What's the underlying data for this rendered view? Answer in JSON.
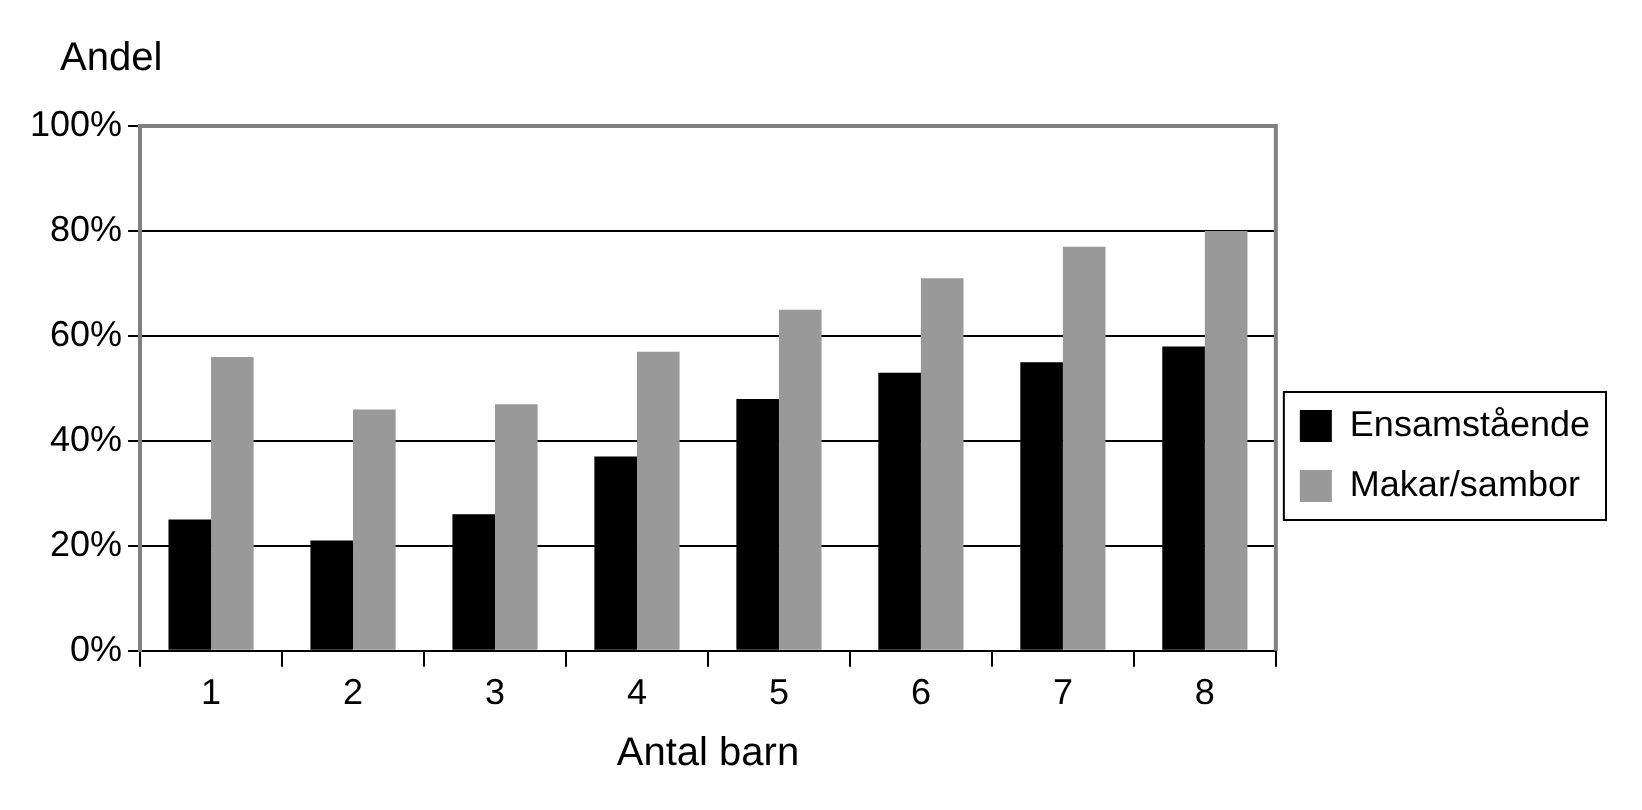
{
  "chart_data": {
    "type": "bar",
    "ylabel": "Andel",
    "xlabel": "Antal barn",
    "categories": [
      "1",
      "2",
      "3",
      "4",
      "5",
      "6",
      "7",
      "8"
    ],
    "series": [
      {
        "name": "Ensamstående",
        "color": "#000000",
        "values": [
          25,
          21,
          26,
          37,
          48,
          53,
          55,
          58
        ]
      },
      {
        "name": "Makar/sambor",
        "color": "#999999",
        "values": [
          56,
          46,
          47,
          57,
          65,
          71,
          77,
          80
        ]
      }
    ],
    "ylim": [
      0,
      100
    ],
    "yticks": [
      {
        "value": 0,
        "label": "0%"
      },
      {
        "value": 20,
        "label": "20%"
      },
      {
        "value": 40,
        "label": "40%"
      },
      {
        "value": 60,
        "label": "60%"
      },
      {
        "value": 80,
        "label": "80%"
      },
      {
        "value": 100,
        "label": "100%"
      }
    ],
    "grid": "y",
    "legend": "right"
  }
}
